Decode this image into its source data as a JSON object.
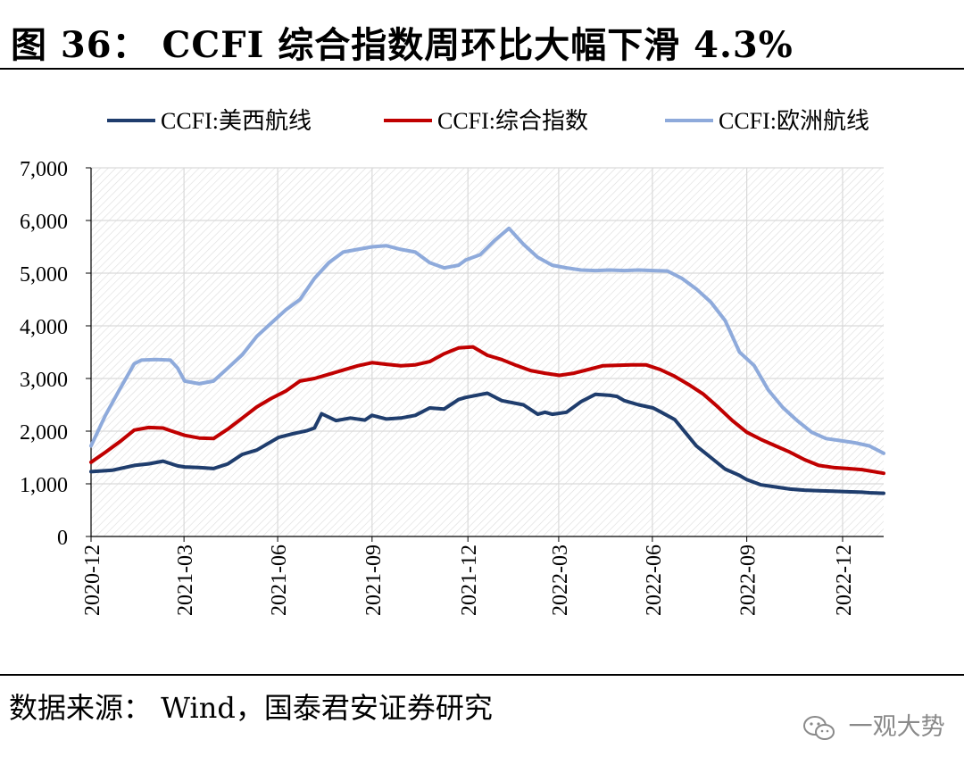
{
  "header": {
    "title": "图 36： CCFI 综合指数周环比大幅下滑 4.3%"
  },
  "footer": {
    "source": "数据来源： Wind，国泰君安证券研究"
  },
  "watermark": {
    "text": "一观大势",
    "icon": "wechat-icon"
  },
  "colors": {
    "us_west": "#1f3d6d",
    "composite": "#c00000",
    "europe": "#8eaadb"
  },
  "chart_data": {
    "type": "line",
    "title": "CCFI 综合指数周环比大幅下滑 4.3%",
    "xlabel": "",
    "ylabel": "",
    "ylim": [
      0,
      7000
    ],
    "yticks": [
      0,
      1000,
      2000,
      3000,
      4000,
      5000,
      6000,
      7000
    ],
    "ytick_labels": [
      "0",
      "1,000",
      "2,000",
      "3,000",
      "4,000",
      "5,000",
      "6,000",
      "7,000"
    ],
    "x_start": "2020-12-04",
    "x_unit": "weeks since start",
    "xlim": [
      0,
      110
    ],
    "xticks": [
      0,
      12.9,
      25.9,
      39,
      52.3,
      64.9,
      77.9,
      91,
      104.3
    ],
    "xtick_labels": [
      "2020-12",
      "2021-03",
      "2021-06",
      "2021-09",
      "2021-12",
      "2022-03",
      "2022-06",
      "2022-09",
      "2022-12"
    ],
    "grid": true,
    "legend_position": "top",
    "series": [
      {
        "name": "CCFI:美西航线",
        "x": [
          0,
          3,
          6,
          8,
          10,
          12,
          13,
          15,
          17,
          19,
          21,
          23,
          25,
          26,
          28,
          30,
          31,
          32,
          34,
          36,
          38,
          39,
          41,
          43,
          45,
          47,
          49,
          51,
          52,
          55,
          57,
          60,
          62,
          63,
          64,
          66,
          68,
          70,
          72,
          73,
          74,
          76,
          78,
          79,
          81,
          84,
          86,
          88,
          90,
          91,
          93,
          95,
          97,
          99,
          101,
          103,
          105,
          107,
          108,
          110
        ],
        "values": [
          1230,
          1260,
          1350,
          1380,
          1430,
          1340,
          1320,
          1310,
          1290,
          1380,
          1560,
          1640,
          1800,
          1880,
          1950,
          2010,
          2060,
          2330,
          2200,
          2250,
          2210,
          2300,
          2230,
          2250,
          2300,
          2440,
          2420,
          2600,
          2640,
          2720,
          2580,
          2500,
          2320,
          2360,
          2320,
          2360,
          2560,
          2700,
          2680,
          2660,
          2580,
          2500,
          2440,
          2370,
          2220,
          1720,
          1500,
          1280,
          1160,
          1080,
          980,
          940,
          900,
          880,
          870,
          860,
          850,
          840,
          830,
          820
        ]
      },
      {
        "name": "CCFI:综合指数",
        "x": [
          0,
          2,
          4,
          6,
          8,
          10,
          11,
          13,
          15,
          17,
          19,
          21,
          23,
          25,
          27,
          29,
          31,
          33,
          35,
          37,
          39,
          41,
          43,
          45,
          47,
          49,
          51,
          53,
          55,
          57,
          59,
          61,
          63,
          65,
          67,
          69,
          71,
          73,
          75,
          77,
          79,
          81,
          83,
          85,
          87,
          89,
          91,
          93,
          95,
          97,
          99,
          101,
          103,
          105,
          107,
          110
        ],
        "values": [
          1410,
          1600,
          1800,
          2020,
          2070,
          2060,
          2010,
          1920,
          1870,
          1860,
          2040,
          2250,
          2460,
          2620,
          2760,
          2950,
          3000,
          3080,
          3160,
          3240,
          3300,
          3270,
          3240,
          3260,
          3320,
          3470,
          3580,
          3600,
          3440,
          3360,
          3250,
          3150,
          3100,
          3060,
          3100,
          3170,
          3240,
          3250,
          3260,
          3260,
          3170,
          3040,
          2880,
          2700,
          2460,
          2200,
          1980,
          1840,
          1720,
          1600,
          1460,
          1350,
          1310,
          1290,
          1270,
          1200
        ]
      },
      {
        "name": "CCFI:欧洲航线",
        "x": [
          0,
          2,
          4,
          6,
          7,
          9,
          11,
          12,
          13,
          15,
          17,
          19,
          21,
          23,
          25,
          27,
          29,
          31,
          33,
          35,
          37,
          39,
          41,
          43,
          45,
          47,
          49,
          51,
          52,
          54,
          56,
          58,
          60,
          62,
          64,
          66,
          68,
          70,
          72,
          74,
          76,
          78,
          80,
          82,
          84,
          86,
          88,
          90,
          92,
          94,
          96,
          98,
          100,
          102,
          104,
          106,
          108,
          110
        ],
        "values": [
          1720,
          2300,
          2800,
          3280,
          3350,
          3360,
          3350,
          3200,
          2950,
          2900,
          2950,
          3200,
          3450,
          3800,
          4050,
          4300,
          4500,
          4900,
          5200,
          5400,
          5450,
          5500,
          5520,
          5450,
          5400,
          5200,
          5100,
          5150,
          5250,
          5350,
          5620,
          5850,
          5550,
          5300,
          5150,
          5100,
          5060,
          5050,
          5060,
          5050,
          5060,
          5050,
          5040,
          4900,
          4700,
          4450,
          4100,
          3500,
          3250,
          2780,
          2450,
          2200,
          1980,
          1860,
          1820,
          1780,
          1720,
          1580
        ]
      }
    ]
  }
}
